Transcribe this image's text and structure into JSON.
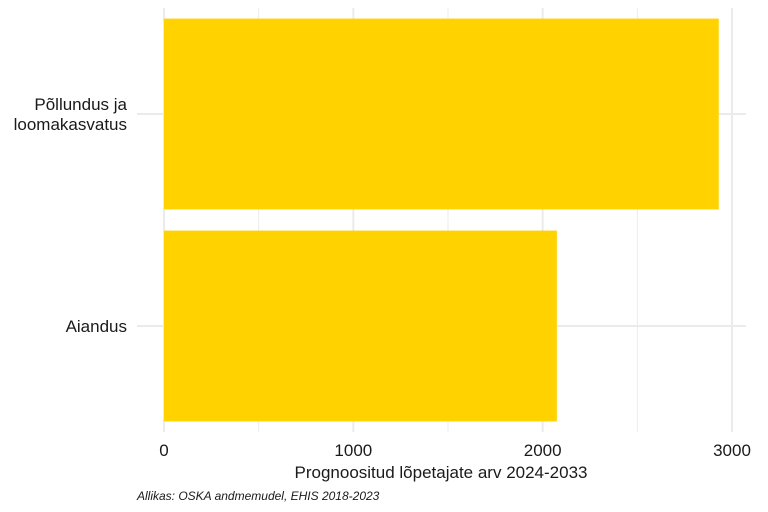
{
  "chart_data": {
    "type": "bar",
    "orientation": "horizontal",
    "categories": [
      "Põllundus ja loomakasvatus",
      "Aiandus"
    ],
    "category_lines": [
      [
        "Põllundus ja",
        "loomakasvatus"
      ],
      [
        "Aiandus"
      ]
    ],
    "values": [
      2930,
      2075
    ],
    "xlabel": "Prognoositud lõpetajate arv 2024-2033",
    "ylabel": "",
    "xlim": [
      0,
      3000
    ],
    "xticks": [
      0,
      1000,
      2000,
      3000
    ],
    "grid": true,
    "legend": "none",
    "bar_color": "#FFD200",
    "grid_color": "#EBEBEB"
  },
  "caption": "Allikas: OSKA andmemudel, EHIS 2018-2023"
}
